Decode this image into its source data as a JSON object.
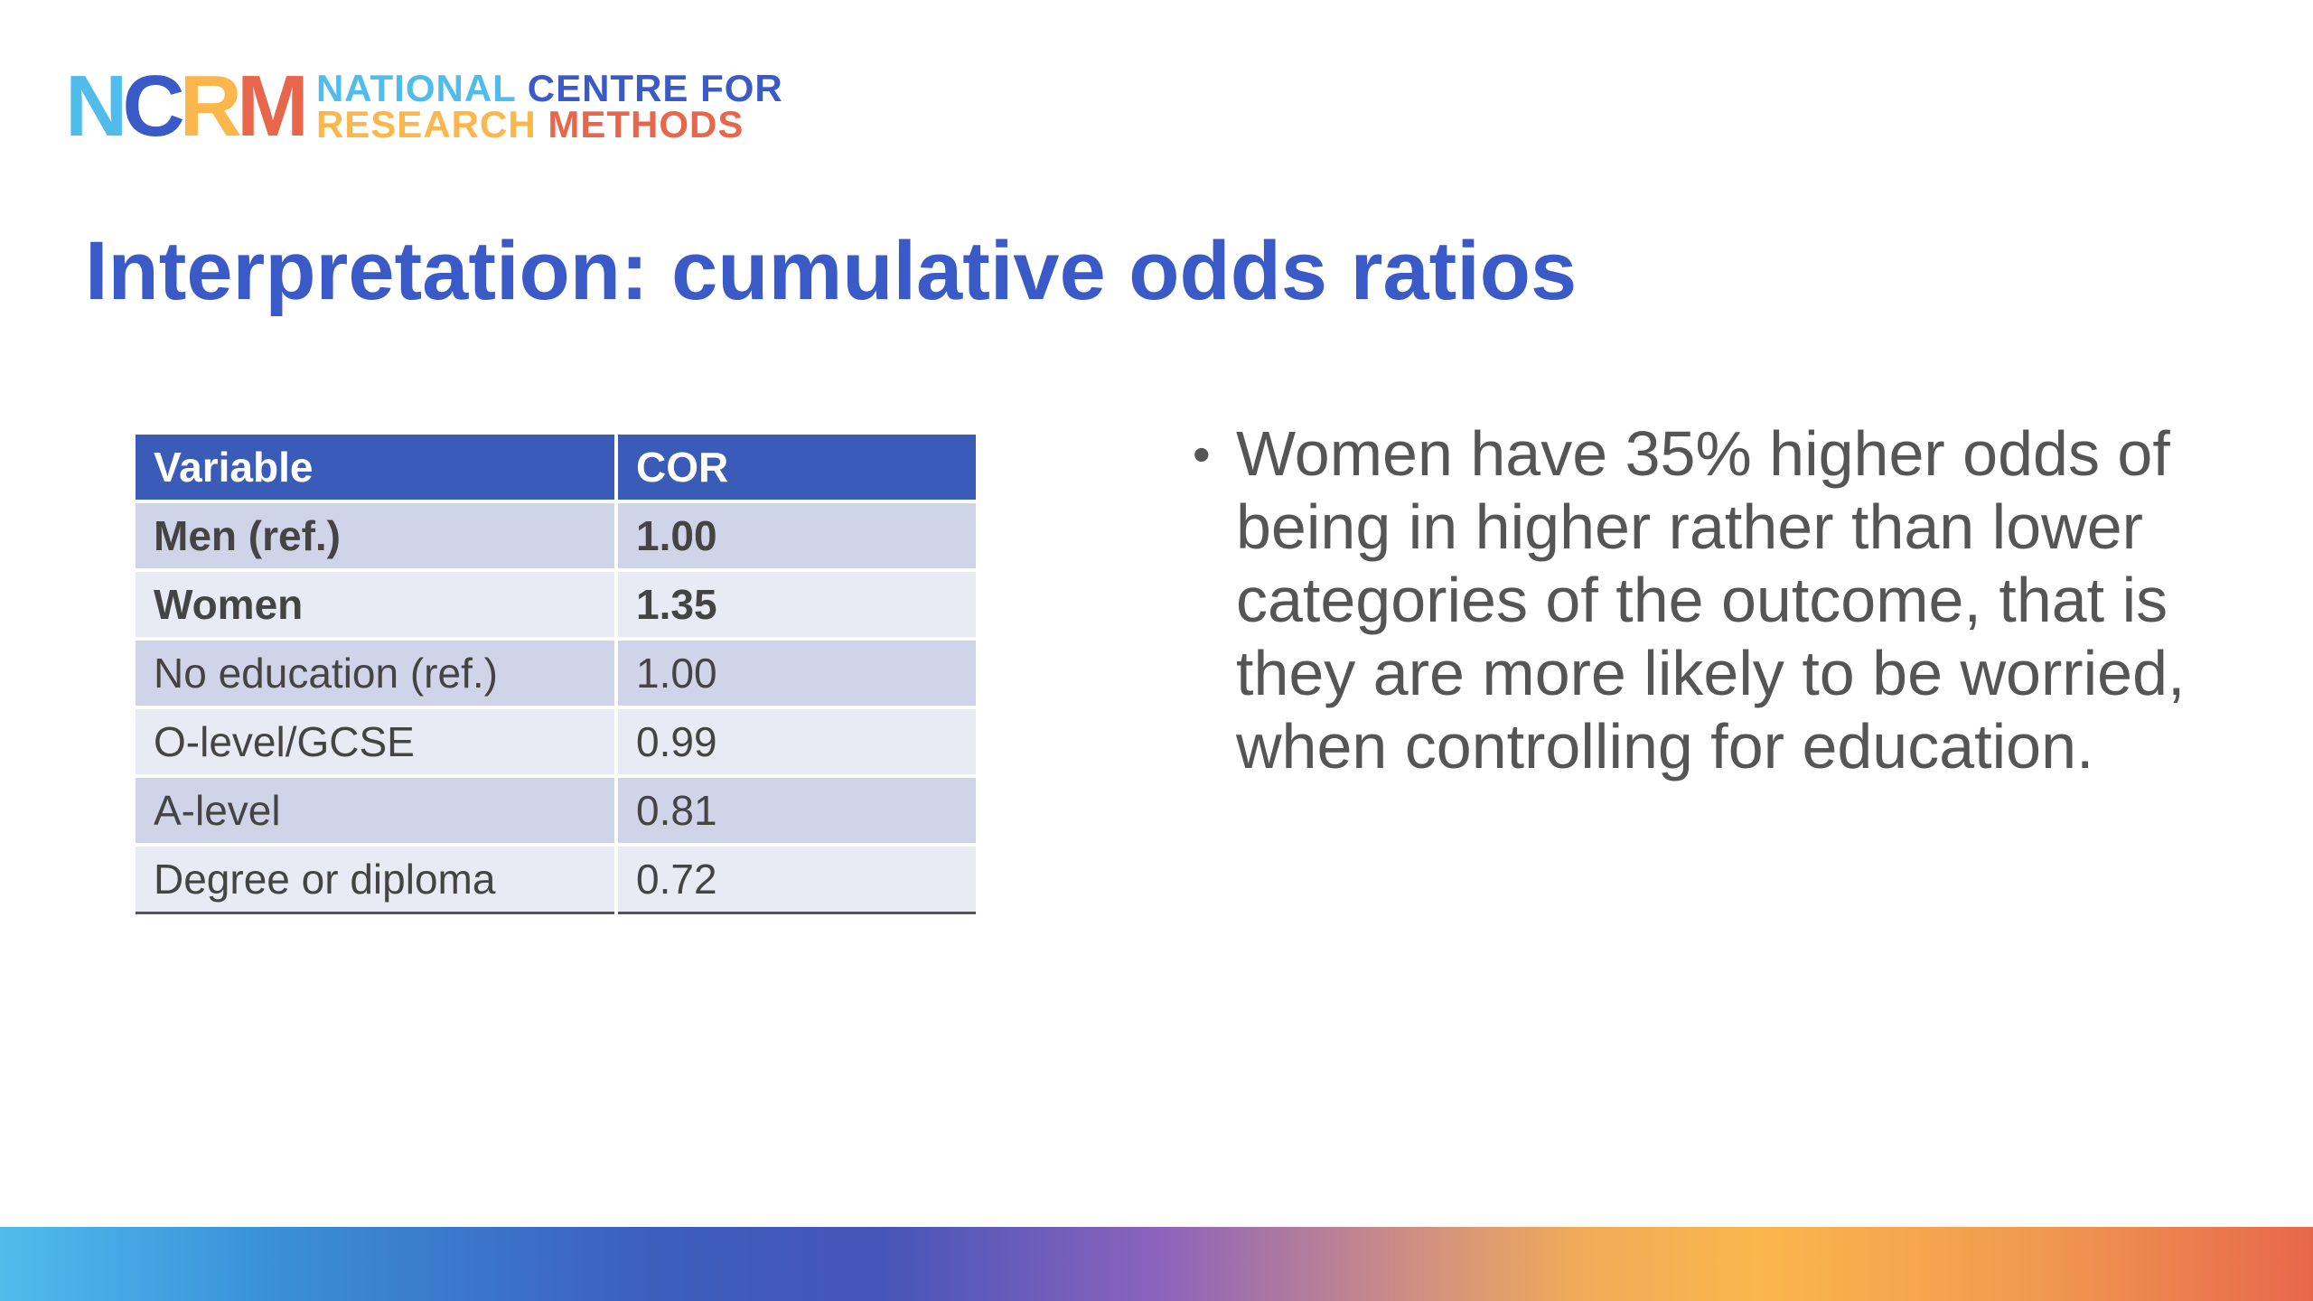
{
  "colors": {
    "title": "#3a5bc7",
    "table_header_bg": "#3a5bb8",
    "row_odd_bg": "#cfd4e9",
    "row_even_bg": "#e8eaf4",
    "body_text": "#555555",
    "logo_n": "#4fbcec",
    "logo_c": "#3a5bc7",
    "logo_r": "#fbb64c",
    "logo_m": "#e8674c"
  },
  "logo": {
    "mark": {
      "n": "N",
      "c": "C",
      "r": "R",
      "m": "M"
    },
    "line1": {
      "part1": "NATIONAL",
      "part2": "CENTRE FOR"
    },
    "line2": {
      "part1": "RESEARCH",
      "part2": "METHODS"
    }
  },
  "title": "Interpretation: cumulative odds ratios",
  "table": {
    "headers": [
      "Variable",
      "COR"
    ],
    "rows": [
      {
        "variable": "Men (ref.)",
        "cor": "1.00"
      },
      {
        "variable": "Women",
        "cor": "1.35"
      },
      {
        "variable": "No education (ref.)",
        "cor": "1.00"
      },
      {
        "variable": "O-level/GCSE",
        "cor": "0.99"
      },
      {
        "variable": "A-level",
        "cor": "0.81"
      },
      {
        "variable": "Degree or diploma",
        "cor": "0.72"
      }
    ]
  },
  "bullet": {
    "marker": "•",
    "text": "Women have 35% higher odds of being in higher rather than lower categories of the outcome, that is they are more likely to be worried, when controlling for education."
  }
}
